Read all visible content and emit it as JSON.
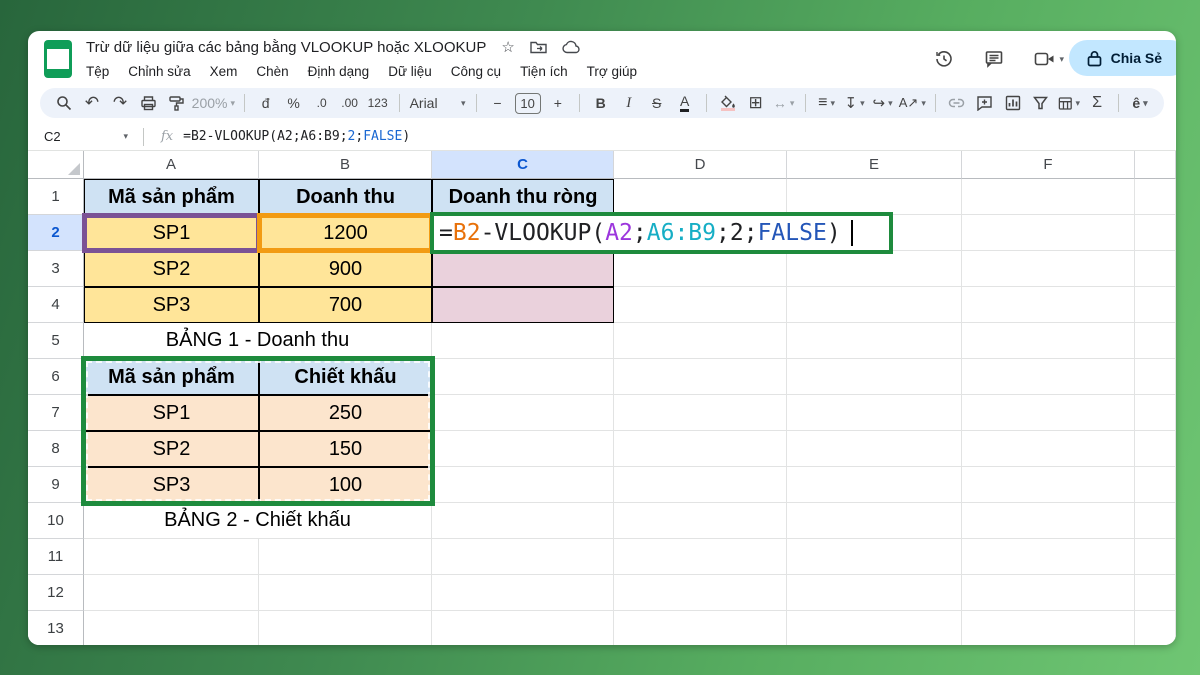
{
  "titlebar": {
    "doc_title": "Trừ dữ liệu giữa các bảng bằng VLOOKUP hoặc XLOOKUP",
    "menu": [
      "Tệp",
      "Chỉnh sửa",
      "Xem",
      "Chèn",
      "Định dạng",
      "Dữ liệu",
      "Công cụ",
      "Tiện ích",
      "Trợ giúp"
    ],
    "share_label": "Chia Sẻ"
  },
  "toolbar": {
    "zoom": "200%",
    "currency": "đ",
    "percent": "%",
    "decrease_decimal": ".0",
    "increase_decimal": ".00",
    "number_format": "123",
    "font_family": "Arial",
    "decrease_font": "−",
    "font_size": "10",
    "increase_font": "+",
    "bold": "B",
    "italic": "I",
    "strikethrough": "S",
    "text_color": "A",
    "borders": "⊞",
    "merge": "↔",
    "align": "≡",
    "valign": "↧",
    "wrap": "↪",
    "rotate": "A↗",
    "functions": "Σ",
    "input_tools": "ê",
    "undo": "↶",
    "redo": "↷"
  },
  "formula_bar": {
    "name_box": "C2",
    "fx_label": "fx",
    "parts": [
      {
        "text": "=B2-VLOOKUP(A2;A6:B9;",
        "color": "#202124"
      },
      {
        "text": "2",
        "color": "#1967d2"
      },
      {
        "text": ";",
        "color": "#202124"
      },
      {
        "text": "FALSE",
        "color": "#1967d2"
      },
      {
        "text": ")",
        "color": "#202124"
      }
    ]
  },
  "grid": {
    "columns": [
      "A",
      "B",
      "C",
      "D",
      "E",
      "F"
    ],
    "rows": [
      "1",
      "2",
      "3",
      "4",
      "5",
      "6",
      "7",
      "8",
      "9",
      "10",
      "11",
      "12",
      "13"
    ],
    "active_column": "C",
    "active_row": "2",
    "cells": [
      {
        "ref": "A1",
        "text": "Mã sản phẩm",
        "style": "blueHead"
      },
      {
        "ref": "B1",
        "text": "Doanh thu",
        "style": "blueHead"
      },
      {
        "ref": "C1",
        "text": "Doanh thu ròng",
        "style": "blueHead"
      },
      {
        "ref": "A2",
        "text": "SP1",
        "style": "yellow"
      },
      {
        "ref": "B2",
        "text": "1200",
        "style": "yellow"
      },
      {
        "ref": "C2",
        "text": "",
        "style": "editing"
      },
      {
        "ref": "A3",
        "text": "SP2",
        "style": "yellow"
      },
      {
        "ref": "B3",
        "text": "900",
        "style": "yellow"
      },
      {
        "ref": "C3",
        "text": "",
        "style": "pink"
      },
      {
        "ref": "A4",
        "text": "SP3",
        "style": "yellow"
      },
      {
        "ref": "B4",
        "text": "700",
        "style": "yellow"
      },
      {
        "ref": "C4",
        "text": "",
        "style": "pink"
      },
      {
        "ref": "A5",
        "text": "BẢNG 1 - Doanh thu",
        "style": "label2"
      },
      {
        "ref": "A6",
        "text": "Mã sản phẩm",
        "style": "blueHead"
      },
      {
        "ref": "B6",
        "text": "Chiết khấu",
        "style": "blueHead"
      },
      {
        "ref": "A7",
        "text": "SP1",
        "style": "peach"
      },
      {
        "ref": "B7",
        "text": "250",
        "style": "peach"
      },
      {
        "ref": "A8",
        "text": "SP2",
        "style": "peach"
      },
      {
        "ref": "B8",
        "text": "150",
        "style": "peach"
      },
      {
        "ref": "A9",
        "text": "SP3",
        "style": "peach"
      },
      {
        "ref": "B9",
        "text": "100",
        "style": "peach"
      },
      {
        "ref": "A10",
        "text": "BẢNG 2 - Chiết khấu",
        "style": "label2"
      }
    ],
    "cell_formula": {
      "parts": [
        {
          "text": "=",
          "color": "#202124"
        },
        {
          "text": "B2",
          "color": "#e8710a"
        },
        {
          "text": "-VLOOKUP(",
          "color": "#202124"
        },
        {
          "text": "A2",
          "color": "#9c36dd"
        },
        {
          "text": ";",
          "color": "#202124"
        },
        {
          "text": "A6:B9",
          "color": "#16aec5"
        },
        {
          "text": ";",
          "color": "#202124"
        },
        {
          "text": "2",
          "color": "#202124"
        },
        {
          "text": ";",
          "color": "#202124"
        },
        {
          "text": "FALSE",
          "color": "#2456b8"
        },
        {
          "text": ")",
          "color": "#202124"
        }
      ]
    }
  },
  "colors": {
    "blue_header_fill": "#cfe2f3",
    "yellow_fill": "#ffe599",
    "pink_fill": "#ead1dc",
    "peach_fill": "#fce5cd",
    "active_header_fill": "#d3e3fd",
    "annotation_green": "#1e8b3d",
    "annotation_orange": "#f29b13",
    "annotation_purple": "#7b5295",
    "share_button_fill": "#c2e7ff",
    "logo_green": "#0f9d58"
  }
}
